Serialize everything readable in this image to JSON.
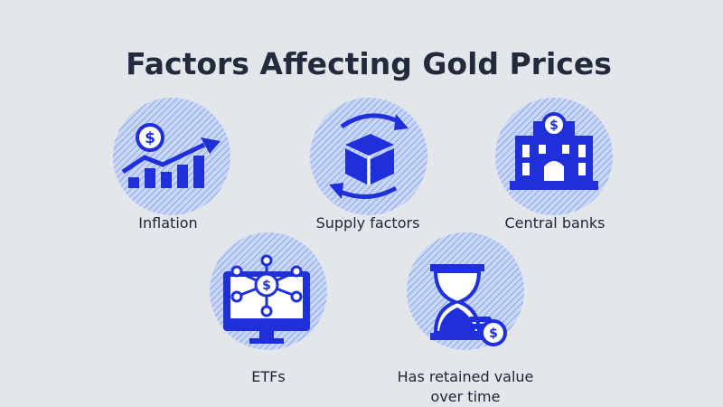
{
  "header": {
    "title": "Factors Affecting Gold Prices"
  },
  "items": [
    {
      "label": [
        "Inflation"
      ]
    },
    {
      "label": [
        "Supply factors"
      ]
    },
    {
      "label": [
        "Central banks"
      ]
    },
    {
      "label": [
        "ETFs"
      ]
    },
    {
      "label": [
        "Has retained value",
        "over time"
      ]
    }
  ]
}
